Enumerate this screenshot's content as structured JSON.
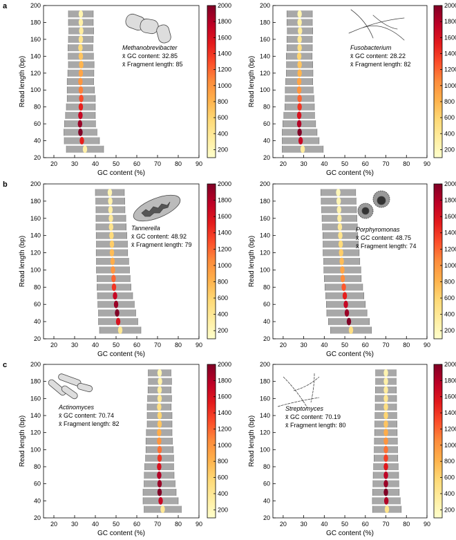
{
  "chart_data": [
    {
      "type": "scatter",
      "panel_label": "a",
      "organism": "Methanobrevibacter",
      "annotations": [
        "x̄ GC content: 32.85",
        "x̄ Fragment length: 85"
      ],
      "x_label": "GC content (%)",
      "y_label": "Read length (bp)",
      "y": [
        30,
        40,
        50,
        60,
        70,
        80,
        90,
        100,
        110,
        120,
        130,
        140,
        150,
        160,
        170,
        180,
        190
      ],
      "x": [
        35,
        33.5,
        32.8,
        32.6,
        32.8,
        33,
        33.2,
        33,
        32.8,
        33,
        33.2,
        33,
        32.8,
        33,
        33.2,
        33,
        33
      ],
      "xerr": [
        9,
        8.5,
        8,
        7.5,
        7.2,
        7,
        6.8,
        6.6,
        6.4,
        6.3,
        6.2,
        6.1,
        6,
        6,
        6,
        6,
        6
      ],
      "counts": [
        300,
        1500,
        2000,
        1900,
        1700,
        1500,
        1300,
        1100,
        1000,
        900,
        800,
        700,
        550,
        450,
        350,
        300,
        250
      ],
      "xlim": [
        15,
        90
      ],
      "xticks": [
        20,
        30,
        40,
        50,
        60,
        70,
        80,
        90
      ],
      "ylim": [
        20,
        200
      ],
      "yticks": [
        20,
        40,
        60,
        80,
        100,
        120,
        140,
        160,
        180,
        200
      ],
      "clim": [
        100,
        2000
      ],
      "cticks": [
        200,
        400,
        600,
        800,
        1000,
        1200,
        1400,
        1600,
        1800,
        2000
      ],
      "colormap": [
        "#ffffcc",
        "#ffeda0",
        "#fed976",
        "#feb24c",
        "#fd8d3c",
        "#fc4e2a",
        "#e31a1c",
        "#bd0026",
        "#800026"
      ],
      "errorbar_color": "#a8a8a8"
    },
    {
      "type": "scatter",
      "organism": "Fusobacterium",
      "annotations": [
        "x̄ GC content: 28.22",
        "x̄ Fragment length: 82"
      ],
      "x_label": "GC content (%)",
      "y_label": "Read length (bp)",
      "y": [
        30,
        40,
        50,
        60,
        70,
        80,
        90,
        100,
        110,
        120,
        130,
        140,
        150,
        160,
        170,
        180,
        190
      ],
      "x": [
        29.5,
        28.5,
        28,
        27.8,
        27.8,
        28,
        28,
        27.8,
        27.8,
        28,
        28,
        27.8,
        28,
        28,
        28.2,
        28,
        28
      ],
      "xerr": [
        10,
        9,
        8.5,
        8,
        7.5,
        7.2,
        7,
        6.8,
        6.6,
        6.5,
        6.4,
        6.3,
        6.2,
        6.2,
        6.2,
        6.2,
        6.2
      ],
      "counts": [
        350,
        1700,
        2000,
        1800,
        1600,
        1400,
        1200,
        1000,
        900,
        800,
        700,
        600,
        500,
        400,
        350,
        300,
        250
      ],
      "xlim": [
        15,
        90
      ],
      "xticks": [
        20,
        30,
        40,
        50,
        60,
        70,
        80,
        90
      ],
      "ylim": [
        20,
        200
      ],
      "yticks": [
        20,
        40,
        60,
        80,
        100,
        120,
        140,
        160,
        180,
        200
      ],
      "clim": [
        100,
        2000
      ],
      "cticks": [
        200,
        400,
        600,
        800,
        1000,
        1200,
        1400,
        1600,
        1800,
        2000
      ],
      "colormap": [
        "#ffffcc",
        "#ffeda0",
        "#fed976",
        "#feb24c",
        "#fd8d3c",
        "#fc4e2a",
        "#e31a1c",
        "#bd0026",
        "#800026"
      ],
      "errorbar_color": "#a8a8a8"
    },
    {
      "type": "scatter",
      "panel_label": "b",
      "organism": "Tannerella",
      "annotations": [
        "x̄ GC content: 48.92",
        "x̄ Fragment length: 79"
      ],
      "x_label": "GC content (%)",
      "y_label": "Read length (bp)",
      "y": [
        30,
        40,
        50,
        60,
        70,
        80,
        90,
        100,
        110,
        120,
        130,
        140,
        150,
        160,
        170,
        180,
        190
      ],
      "x": [
        52,
        51,
        50.5,
        50,
        49.5,
        49,
        48.8,
        48.5,
        48.3,
        48,
        48,
        47.8,
        47.6,
        47.5,
        47.3,
        47.2,
        47
      ],
      "xerr": [
        10,
        9.5,
        9,
        8.8,
        8.5,
        8.2,
        8,
        8,
        7.8,
        7.6,
        7.5,
        7.4,
        7.3,
        7.2,
        7,
        7,
        7
      ],
      "counts": [
        400,
        1600,
        2000,
        1900,
        1700,
        1400,
        1200,
        1000,
        850,
        750,
        650,
        550,
        450,
        380,
        320,
        280,
        240
      ],
      "xlim": [
        15,
        90
      ],
      "xticks": [
        20,
        30,
        40,
        50,
        60,
        70,
        80,
        90
      ],
      "ylim": [
        20,
        200
      ],
      "yticks": [
        20,
        40,
        60,
        80,
        100,
        120,
        140,
        160,
        180,
        200
      ],
      "clim": [
        100,
        2000
      ],
      "cticks": [
        200,
        400,
        600,
        800,
        1000,
        1200,
        1400,
        1600,
        1800,
        2000
      ],
      "colormap": [
        "#ffffcc",
        "#ffeda0",
        "#fed976",
        "#feb24c",
        "#fd8d3c",
        "#fc4e2a",
        "#e31a1c",
        "#bd0026",
        "#800026"
      ],
      "errorbar_color": "#a8a8a8"
    },
    {
      "type": "scatter",
      "organism": "Porphyromonas",
      "annotations": [
        "x̄ GC content: 48.75",
        "x̄ Fragment length: 74"
      ],
      "x_label": "GC content (%)",
      "y_label": "Read length (bp)",
      "y": [
        30,
        40,
        50,
        60,
        70,
        80,
        90,
        100,
        110,
        120,
        130,
        140,
        150,
        160,
        170,
        180,
        190
      ],
      "x": [
        53,
        52,
        51,
        50.5,
        50,
        49.5,
        49,
        48.8,
        48.5,
        48.2,
        48,
        47.8,
        47.6,
        47.4,
        47.2,
        47,
        46.8
      ],
      "xerr": [
        10,
        10,
        9.8,
        9.5,
        9.3,
        9.2,
        9,
        9,
        8.8,
        8.8,
        8.6,
        8.5,
        8.5,
        8.5,
        8.5,
        8.5,
        8.5
      ],
      "counts": [
        500,
        2000,
        1900,
        1700,
        1500,
        1250,
        1050,
        900,
        750,
        650,
        550,
        450,
        380,
        320,
        270,
        230,
        200
      ],
      "xlim": [
        15,
        90
      ],
      "xticks": [
        20,
        30,
        40,
        50,
        60,
        70,
        80,
        90
      ],
      "ylim": [
        20,
        200
      ],
      "yticks": [
        20,
        40,
        60,
        80,
        100,
        120,
        140,
        160,
        180,
        200
      ],
      "clim": [
        100,
        2000
      ],
      "cticks": [
        200,
        400,
        600,
        800,
        1000,
        1200,
        1400,
        1600,
        1800,
        2000
      ],
      "colormap": [
        "#ffffcc",
        "#ffeda0",
        "#fed976",
        "#feb24c",
        "#fd8d3c",
        "#fc4e2a",
        "#e31a1c",
        "#bd0026",
        "#800026"
      ],
      "errorbar_color": "#a8a8a8"
    },
    {
      "type": "scatter",
      "panel_label": "c",
      "organism": "Actinomyces",
      "annotations": [
        "x̄ GC content: 70.74",
        "x̄ Fragment length: 82"
      ],
      "x_label": "GC content (%)",
      "y_label": "Read length (bp)",
      "y": [
        30,
        40,
        50,
        60,
        70,
        80,
        90,
        100,
        110,
        120,
        130,
        140,
        150,
        160,
        170,
        180,
        190
      ],
      "x": [
        72.5,
        71.5,
        71,
        71,
        70.8,
        70.8,
        71,
        71,
        70.8,
        70.8,
        71,
        71,
        70.8,
        71,
        71,
        71.2,
        71
      ],
      "xerr": [
        9,
        8.5,
        8,
        7.5,
        7.2,
        7,
        6.8,
        6.6,
        6.4,
        6.2,
        6,
        6,
        5.8,
        5.8,
        5.6,
        5.6,
        5.5
      ],
      "counts": [
        400,
        1700,
        2000,
        1900,
        1800,
        1600,
        1400,
        1150,
        1000,
        850,
        700,
        600,
        500,
        400,
        340,
        290,
        250
      ],
      "xlim": [
        15,
        90
      ],
      "xticks": [
        20,
        30,
        40,
        50,
        60,
        70,
        80,
        90
      ],
      "ylim": [
        20,
        200
      ],
      "yticks": [
        20,
        40,
        60,
        80,
        100,
        120,
        140,
        160,
        180,
        200
      ],
      "clim": [
        100,
        2000
      ],
      "cticks": [
        200,
        400,
        600,
        800,
        1000,
        1200,
        1400,
        1600,
        1800,
        2000
      ],
      "colormap": [
        "#ffffcc",
        "#ffeda0",
        "#fed976",
        "#feb24c",
        "#fd8d3c",
        "#fc4e2a",
        "#e31a1c",
        "#bd0026",
        "#800026"
      ],
      "errorbar_color": "#a8a8a8"
    },
    {
      "type": "scatter",
      "organism": "Streptomyces",
      "annotations": [
        "x̄ GC content: 70.19",
        "x̄ Fragment length: 80"
      ],
      "x_label": "GC content (%)",
      "y_label": "Read length (bp)",
      "y": [
        30,
        40,
        50,
        60,
        70,
        80,
        90,
        100,
        110,
        120,
        130,
        140,
        150,
        160,
        170,
        180,
        190
      ],
      "x": [
        70.5,
        70.2,
        70,
        70,
        70,
        70,
        70,
        70,
        70,
        70,
        70,
        70,
        70,
        70,
        70,
        70,
        70
      ],
      "xerr": [
        7,
        6.8,
        6.5,
        6.3,
        6.2,
        6,
        5.8,
        5.7,
        5.6,
        5.5,
        5.4,
        5.3,
        5.2,
        5.2,
        5.1,
        5,
        5
      ],
      "counts": [
        450,
        1800,
        2000,
        1900,
        1750,
        1550,
        1350,
        1150,
        1000,
        850,
        700,
        600,
        500,
        420,
        350,
        300,
        250
      ],
      "xlim": [
        15,
        90
      ],
      "xticks": [
        20,
        30,
        40,
        50,
        60,
        70,
        80,
        90
      ],
      "ylim": [
        20,
        200
      ],
      "yticks": [
        20,
        40,
        60,
        80,
        100,
        120,
        140,
        160,
        180,
        200
      ],
      "clim": [
        100,
        2000
      ],
      "cticks": [
        200,
        400,
        600,
        800,
        1000,
        1200,
        1400,
        1600,
        1800,
        2000
      ],
      "colormap": [
        "#ffffcc",
        "#ffeda0",
        "#fed976",
        "#feb24c",
        "#fd8d3c",
        "#fc4e2a",
        "#e31a1c",
        "#bd0026",
        "#800026"
      ],
      "errorbar_color": "#a8a8a8"
    }
  ]
}
